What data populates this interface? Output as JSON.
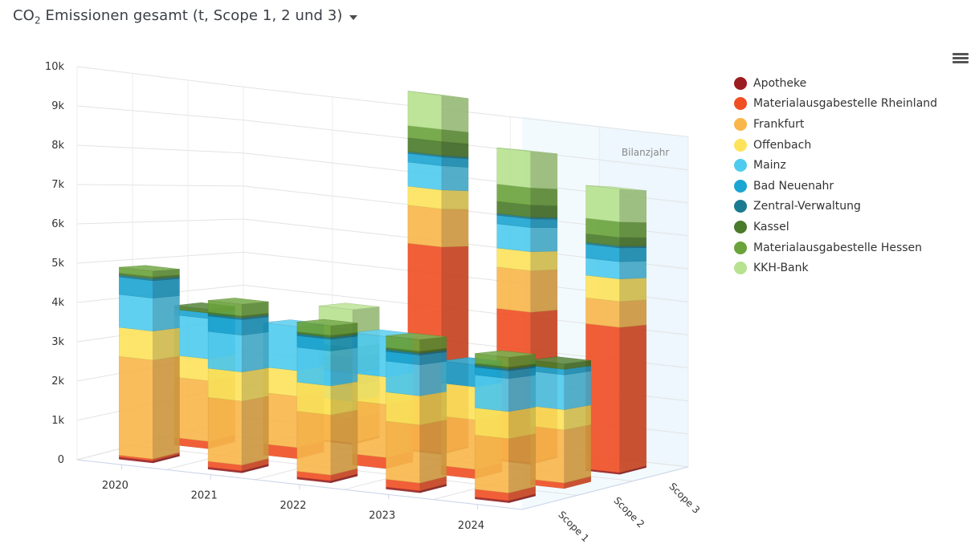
{
  "header": {
    "title_main": "CO",
    "title_sub": "2",
    "title_rest": " Emissionen gesamt (t, Scope 1, 2 und 3)"
  },
  "menu_icon": "hamburger-menu-icon",
  "chart_data": {
    "type": "bar",
    "variant": "3d-stacked-column",
    "title": "CO2 Emissionen gesamt (t, Scope 1, 2 und 3)",
    "years": [
      "2020",
      "2021",
      "2022",
      "2023",
      "2024"
    ],
    "scopes": [
      "Scope 1",
      "Scope 2",
      "Scope 3"
    ],
    "y_ticks": [
      "0",
      "1k",
      "2k",
      "3k",
      "4k",
      "5k",
      "6k",
      "7k",
      "8k",
      "9k",
      "10k"
    ],
    "ylim": [
      0,
      10000
    ],
    "grid": true,
    "legend_position": "right",
    "plot_band_label": "Bilanzjahr",
    "plot_band_year": "2024",
    "series": [
      {
        "name": "Apotheke",
        "color": "#9b1d20"
      },
      {
        "name": "Materialausgabestelle Rheinland",
        "color": "#f04e23"
      },
      {
        "name": "Frankfurt",
        "color": "#f9b64b"
      },
      {
        "name": "Offenbach",
        "color": "#fde35b"
      },
      {
        "name": "Mainz",
        "color": "#4fcbef"
      },
      {
        "name": "Bad Neuenahr",
        "color": "#1ba5d2"
      },
      {
        "name": "Zentral-Verwaltung",
        "color": "#1a7a8f"
      },
      {
        "name": "Kassel",
        "color": "#4a7b2a"
      },
      {
        "name": "Materialausgabestelle Hessen",
        "color": "#6aa33a"
      },
      {
        "name": "KKH-Bank",
        "color": "#b7e28f"
      }
    ],
    "stacks": {
      "Scope 1": {
        "2020": [
          50,
          50,
          2550,
          750,
          850,
          450,
          50,
          50,
          150,
          0
        ],
        "2021": [
          50,
          150,
          1650,
          750,
          950,
          400,
          50,
          50,
          300,
          0
        ],
        "2022": [
          50,
          150,
          1550,
          750,
          900,
          300,
          50,
          50,
          250,
          0
        ],
        "2023": [
          50,
          200,
          1500,
          750,
          800,
          250,
          50,
          50,
          300,
          0
        ],
        "2024": [
          50,
          200,
          1400,
          700,
          850,
          200,
          50,
          50,
          250,
          0
        ]
      },
      "Scope 2": {
        "2020": [
          0,
          200,
          1650,
          600,
          1100,
          150,
          0,
          100,
          0,
          0
        ],
        "2021": [
          0,
          300,
          1400,
          700,
          1200,
          0,
          0,
          0,
          0,
          0
        ],
        "2022": [
          0,
          300,
          1450,
          750,
          1100,
          0,
          0,
          0,
          0,
          0
        ],
        "2023": [
          0,
          250,
          1350,
          900,
          0,
          600,
          0,
          0,
          0,
          0
        ],
        "2024": [
          0,
          150,
          1450,
          550,
          950,
          150,
          0,
          150,
          0,
          0
        ]
      },
      "Scope 3": {
        "2020": [
          0,
          0,
          0,
          0,
          0,
          0,
          0,
          0,
          0,
          0
        ],
        "2021": [
          50,
          0,
          700,
          500,
          450,
          350,
          50,
          400,
          300,
          1100
        ],
        "2022": [
          50,
          5950,
          1100,
          550,
          700,
          250,
          50,
          400,
          350,
          1000
        ],
        "2023": [
          50,
          4350,
          1200,
          550,
          700,
          250,
          50,
          350,
          500,
          1050
        ],
        "2024": [
          50,
          4200,
          750,
          650,
          500,
          400,
          50,
          250,
          450,
          950
        ]
      }
    }
  }
}
